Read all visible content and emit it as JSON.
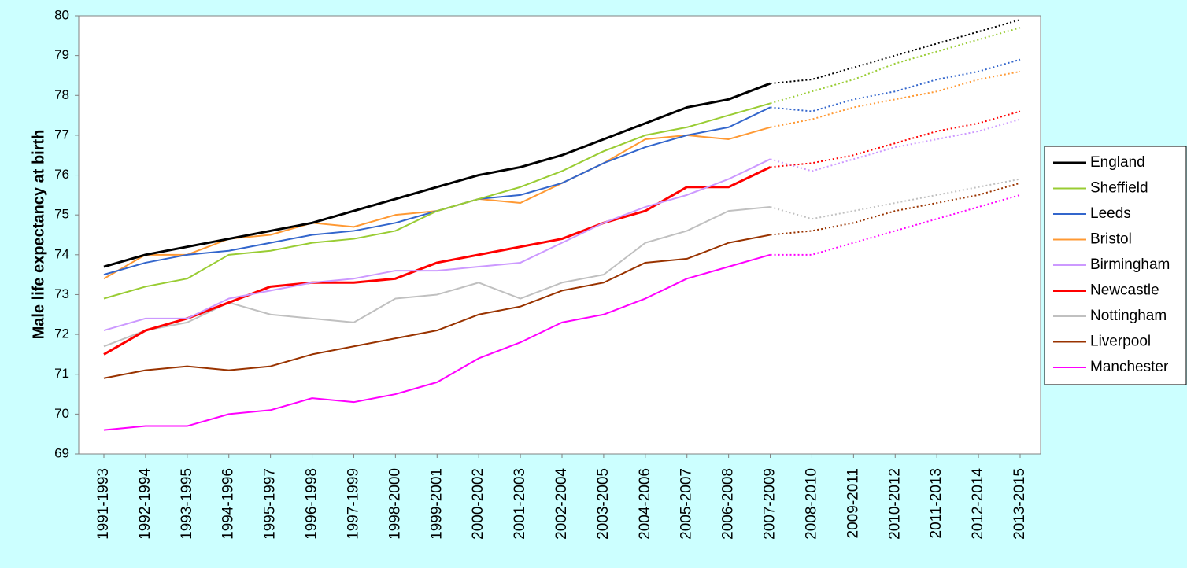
{
  "chart_data": {
    "type": "line",
    "y_label": "Male life expectancy at birth",
    "categories": [
      "1991-1993",
      "1992-1994",
      "1993-1995",
      "1994-1996",
      "1995-1997",
      "1996-1998",
      "1997-1999",
      "1998-2000",
      "1999-2001",
      "2000-2002",
      "2001-2003",
      "2002-2004",
      "2003-2005",
      "2004-2006",
      "2005-2007",
      "2006-2008",
      "2007-2009",
      "2008-2010",
      "2009-2011",
      "2010-2012",
      "2011-2013",
      "2012-2014",
      "2013-2015"
    ],
    "ylim": [
      69,
      80
    ],
    "yticks": [
      69,
      70,
      71,
      72,
      73,
      74,
      75,
      76,
      77,
      78,
      79,
      80
    ],
    "legend": "right",
    "series": [
      {
        "name": "England",
        "color": "#000000",
        "width": 3,
        "values": [
          73.7,
          74.0,
          74.2,
          74.4,
          74.6,
          74.8,
          75.1,
          75.4,
          75.7,
          76.0,
          76.2,
          76.5,
          76.9,
          77.3,
          77.7,
          77.9,
          78.3,
          null,
          null,
          null,
          null,
          null,
          null
        ],
        "projection": [
          null,
          null,
          null,
          null,
          null,
          null,
          null,
          null,
          null,
          null,
          null,
          null,
          null,
          null,
          null,
          null,
          78.3,
          78.4,
          78.7,
          79.0,
          79.3,
          79.6,
          79.9
        ]
      },
      {
        "name": "Sheffield",
        "color": "#99cc33",
        "width": 2,
        "values": [
          72.9,
          73.2,
          73.4,
          74.0,
          74.1,
          74.3,
          74.4,
          74.6,
          75.1,
          75.4,
          75.7,
          76.1,
          76.6,
          77.0,
          77.2,
          77.5,
          77.8,
          null,
          null,
          null,
          null,
          null,
          null
        ],
        "projection": [
          null,
          null,
          null,
          null,
          null,
          null,
          null,
          null,
          null,
          null,
          null,
          null,
          null,
          null,
          null,
          null,
          77.8,
          78.1,
          78.4,
          78.8,
          79.1,
          79.4,
          79.7
        ]
      },
      {
        "name": "Leeds",
        "color": "#3366cc",
        "width": 2,
        "values": [
          73.5,
          73.8,
          74.0,
          74.1,
          74.3,
          74.5,
          74.6,
          74.8,
          75.1,
          75.4,
          75.5,
          75.8,
          76.3,
          76.7,
          77.0,
          77.2,
          77.7,
          null,
          null,
          null,
          null,
          null,
          null
        ],
        "projection": [
          null,
          null,
          null,
          null,
          null,
          null,
          null,
          null,
          null,
          null,
          null,
          null,
          null,
          null,
          null,
          null,
          77.7,
          77.6,
          77.9,
          78.1,
          78.4,
          78.6,
          78.9
        ]
      },
      {
        "name": "Bristol",
        "color": "#ff9933",
        "width": 2,
        "values": [
          73.4,
          74.0,
          74.0,
          74.4,
          74.5,
          74.8,
          74.7,
          75.0,
          75.1,
          75.4,
          75.3,
          75.8,
          76.3,
          76.9,
          77.0,
          76.9,
          77.2,
          null,
          null,
          null,
          null,
          null,
          null
        ],
        "projection": [
          null,
          null,
          null,
          null,
          null,
          null,
          null,
          null,
          null,
          null,
          null,
          null,
          null,
          null,
          null,
          null,
          77.2,
          77.4,
          77.7,
          77.9,
          78.1,
          78.4,
          78.6
        ]
      },
      {
        "name": "Birmingham",
        "color": "#cc99ff",
        "width": 2,
        "values": [
          72.1,
          72.4,
          72.4,
          72.9,
          73.1,
          73.3,
          73.4,
          73.6,
          73.6,
          73.7,
          73.8,
          74.3,
          74.8,
          75.2,
          75.5,
          75.9,
          76.4,
          null,
          null,
          null,
          null,
          null,
          null
        ],
        "projection": [
          null,
          null,
          null,
          null,
          null,
          null,
          null,
          null,
          null,
          null,
          null,
          null,
          null,
          null,
          null,
          null,
          76.4,
          76.1,
          76.4,
          76.7,
          76.9,
          77.1,
          77.4
        ]
      },
      {
        "name": "Newcastle",
        "color": "#ff0000",
        "width": 3,
        "values": [
          71.5,
          72.1,
          72.4,
          72.8,
          73.2,
          73.3,
          73.3,
          73.4,
          73.8,
          74.0,
          74.2,
          74.4,
          74.8,
          75.1,
          75.7,
          75.7,
          76.2,
          null,
          null,
          null,
          null,
          null,
          null
        ],
        "projection": [
          null,
          null,
          null,
          null,
          null,
          null,
          null,
          null,
          null,
          null,
          null,
          null,
          null,
          null,
          null,
          null,
          76.2,
          76.3,
          76.5,
          76.8,
          77.1,
          77.3,
          77.6
        ]
      },
      {
        "name": "Nottingham",
        "color": "#c0c0c0",
        "width": 2,
        "values": [
          71.7,
          72.1,
          72.3,
          72.8,
          72.5,
          72.4,
          72.3,
          72.9,
          73.0,
          73.3,
          72.9,
          73.3,
          73.5,
          74.3,
          74.6,
          75.1,
          75.2,
          null,
          null,
          null,
          null,
          null,
          null
        ],
        "projection": [
          null,
          null,
          null,
          null,
          null,
          null,
          null,
          null,
          null,
          null,
          null,
          null,
          null,
          null,
          null,
          null,
          75.2,
          74.9,
          75.1,
          75.3,
          75.5,
          75.7,
          75.9
        ]
      },
      {
        "name": "Liverpool",
        "color": "#993300",
        "width": 2,
        "values": [
          70.9,
          71.1,
          71.2,
          71.1,
          71.2,
          71.5,
          71.7,
          71.9,
          72.1,
          72.5,
          72.7,
          73.1,
          73.3,
          73.8,
          73.9,
          74.3,
          74.5,
          null,
          null,
          null,
          null,
          null,
          null
        ],
        "projection": [
          null,
          null,
          null,
          null,
          null,
          null,
          null,
          null,
          null,
          null,
          null,
          null,
          null,
          null,
          null,
          null,
          74.5,
          74.6,
          74.8,
          75.1,
          75.3,
          75.5,
          75.8
        ]
      },
      {
        "name": "Manchester",
        "color": "#ff00ff",
        "width": 2,
        "values": [
          69.6,
          69.7,
          69.7,
          70.0,
          70.1,
          70.4,
          70.3,
          70.5,
          70.8,
          71.4,
          71.8,
          72.3,
          72.5,
          72.9,
          73.4,
          73.7,
          74.0,
          null,
          null,
          null,
          null,
          null,
          null
        ],
        "projection": [
          null,
          null,
          null,
          null,
          null,
          null,
          null,
          null,
          null,
          null,
          null,
          null,
          null,
          null,
          null,
          null,
          74.0,
          74.0,
          74.3,
          74.6,
          74.9,
          75.2,
          75.5
        ]
      }
    ]
  }
}
